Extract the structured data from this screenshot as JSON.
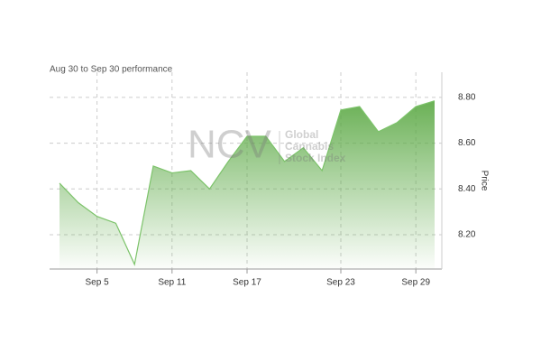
{
  "chart_data": {
    "type": "area",
    "subtitle": "Aug 30 to Sep 30 performance",
    "watermark": {
      "logo": "NCV",
      "lines": [
        "Global",
        "Cannabis",
        "Stock Index"
      ]
    },
    "y_axis_label": "Price",
    "categories": [
      null,
      null,
      "Sep 5",
      null,
      null,
      null,
      "Sep 11",
      null,
      null,
      null,
      "Sep 17",
      null,
      null,
      null,
      null,
      "Sep 23",
      null,
      null,
      null,
      "Sep 29",
      null
    ],
    "series": [
      {
        "name": "NCV Global Cannabis Stock Index",
        "color": "#7cc36a",
        "values": [
          8.425,
          8.34,
          8.28,
          8.25,
          8.07,
          8.5,
          8.47,
          8.48,
          8.4,
          8.52,
          8.63,
          8.63,
          8.52,
          8.58,
          8.48,
          8.745,
          8.76,
          8.65,
          8.69,
          8.76,
          8.785
        ]
      }
    ],
    "ylim": [
      8.05,
      8.91
    ],
    "yticks": [
      {
        "value": 8.2,
        "label": "8.20"
      },
      {
        "value": 8.4,
        "label": "8.40"
      },
      {
        "value": 8.6,
        "label": "8.60"
      },
      {
        "value": 8.8,
        "label": "8.80"
      }
    ],
    "y_axis_side": "right",
    "grid": true
  }
}
